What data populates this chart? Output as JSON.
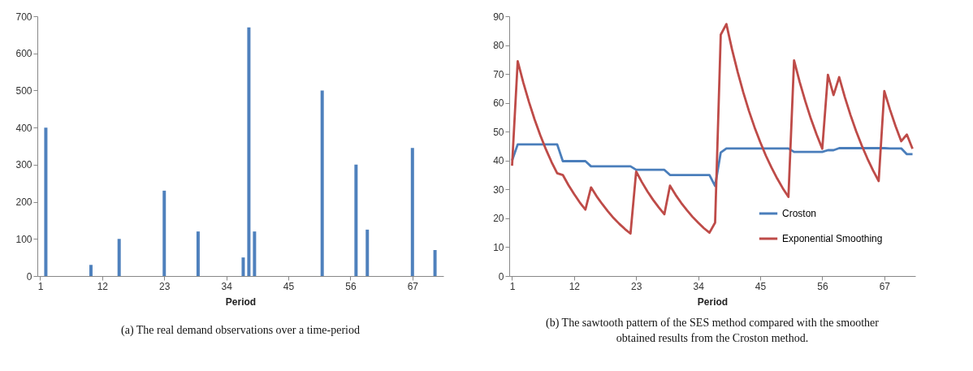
{
  "chart_data": [
    {
      "type": "bar",
      "xlabel": "Period",
      "x": [
        2,
        10,
        15,
        23,
        29,
        37,
        38,
        39,
        51,
        57,
        59,
        67,
        71
      ],
      "values": [
        400,
        30,
        100,
        230,
        120,
        50,
        670,
        120,
        500,
        300,
        125,
        345,
        70
      ],
      "color": "#4f81bd",
      "xlim": [
        0.5,
        72.5
      ],
      "xticks": [
        1,
        12,
        23,
        34,
        45,
        56,
        67
      ],
      "ylim": [
        0,
        700
      ],
      "yticks": [
        0,
        100,
        200,
        300,
        400,
        500,
        600,
        700
      ],
      "annotations": [
        "(a) The real demand observations over a time-period"
      ]
    },
    {
      "type": "line",
      "xlabel": "Period",
      "legend": "bottom right",
      "x": [
        1,
        2,
        3,
        4,
        5,
        6,
        7,
        8,
        9,
        10,
        11,
        12,
        13,
        14,
        15,
        16,
        17,
        18,
        19,
        20,
        21,
        22,
        23,
        24,
        25,
        26,
        27,
        28,
        29,
        30,
        31,
        32,
        33,
        34,
        35,
        36,
        37,
        38,
        39,
        40,
        41,
        42,
        43,
        44,
        45,
        46,
        47,
        48,
        49,
        50,
        51,
        52,
        53,
        54,
        55,
        56,
        57,
        58,
        59,
        60,
        61,
        62,
        63,
        64,
        65,
        66,
        67,
        68,
        69,
        70,
        71,
        72
      ],
      "series": [
        {
          "name": "Croston",
          "color": "#4a7ebb",
          "values": [
            40,
            45.6,
            45.6,
            45.6,
            45.6,
            45.6,
            45.6,
            45.6,
            45.6,
            39.8,
            39.8,
            39.8,
            39.8,
            39.8,
            38,
            38,
            38,
            38,
            38,
            38,
            38,
            38,
            36.8,
            36.8,
            36.8,
            36.8,
            36.8,
            36.8,
            35,
            35,
            35,
            35,
            35,
            35,
            35,
            35,
            31.2,
            42.8,
            44.2,
            44.2,
            44.2,
            44.2,
            44.2,
            44.2,
            44.2,
            44.2,
            44.2,
            44.2,
            44.2,
            44.2,
            43,
            43,
            43,
            43,
            43,
            43,
            43.6,
            43.6,
            44.3,
            44.3,
            44.3,
            44.3,
            44.3,
            44.3,
            44.3,
            44.3,
            44.3,
            44.2,
            44.2,
            44.2,
            42.2,
            42.2
          ]
        },
        {
          "name": "Exponential Smoothing",
          "color": "#be4b48",
          "values": [
            38.2,
            74.4,
            67.0,
            60.3,
            54.2,
            48.8,
            43.9,
            39.5,
            35.6,
            35.0,
            31.5,
            28.4,
            25.5,
            23.0,
            30.7,
            27.6,
            24.9,
            22.4,
            20.1,
            18.1,
            16.3,
            14.7,
            36.2,
            32.6,
            29.3,
            26.4,
            23.8,
            21.4,
            31.3,
            28.1,
            25.3,
            22.8,
            20.5,
            18.5,
            16.6,
            15.0,
            18.5,
            83.6,
            87.3,
            78.5,
            70.7,
            63.6,
            57.2,
            51.5,
            46.4,
            41.7,
            37.6,
            33.8,
            30.4,
            27.4,
            74.7,
            67.2,
            60.5,
            54.4,
            49.0,
            44.1,
            69.7,
            62.7,
            68.9,
            62.0,
            55.8,
            50.2,
            45.2,
            40.7,
            36.6,
            32.9,
            64.1,
            57.7,
            51.9,
            46.7,
            49.0,
            44.1
          ]
        }
      ],
      "xlim": [
        0.5,
        72.5
      ],
      "xticks": [
        1,
        12,
        23,
        34,
        45,
        56,
        67
      ],
      "ylim": [
        0,
        90
      ],
      "yticks": [
        0,
        10,
        20,
        30,
        40,
        50,
        60,
        70,
        80,
        90
      ],
      "annotations": [
        "(b) The sawtooth pattern of the SES method compared with the smoother obtained results from the Croston method."
      ]
    }
  ]
}
